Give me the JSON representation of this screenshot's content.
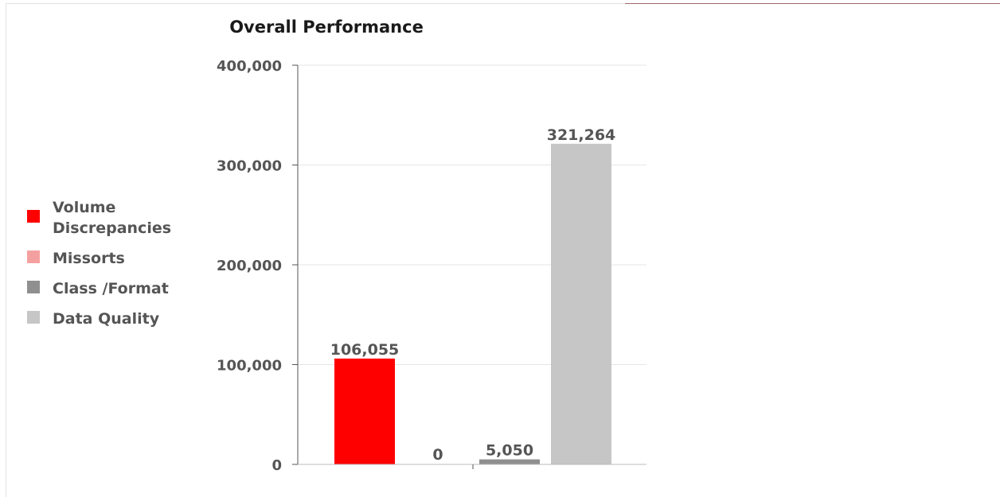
{
  "chart_data": {
    "type": "bar",
    "title": "Overall Performance",
    "categories": [
      "Volume Discrepancies",
      "Missorts",
      "Class /Format",
      "Data Quality"
    ],
    "values": [
      106055,
      0,
      5050,
      321264
    ],
    "data_labels": [
      "106,055",
      "0",
      "5,050",
      "321,264"
    ],
    "colors": [
      "#ff0000",
      "#f5a0a0",
      "#8f8f8f",
      "#c6c6c6"
    ],
    "ylim": [
      0,
      400000
    ],
    "yticks": [
      0,
      100000,
      200000,
      300000,
      400000
    ],
    "ytick_labels": [
      "0",
      "100,000",
      "200,000",
      "300,000",
      "400,000"
    ],
    "grid": true,
    "legend": "left",
    "xlabel": "",
    "ylabel": ""
  }
}
